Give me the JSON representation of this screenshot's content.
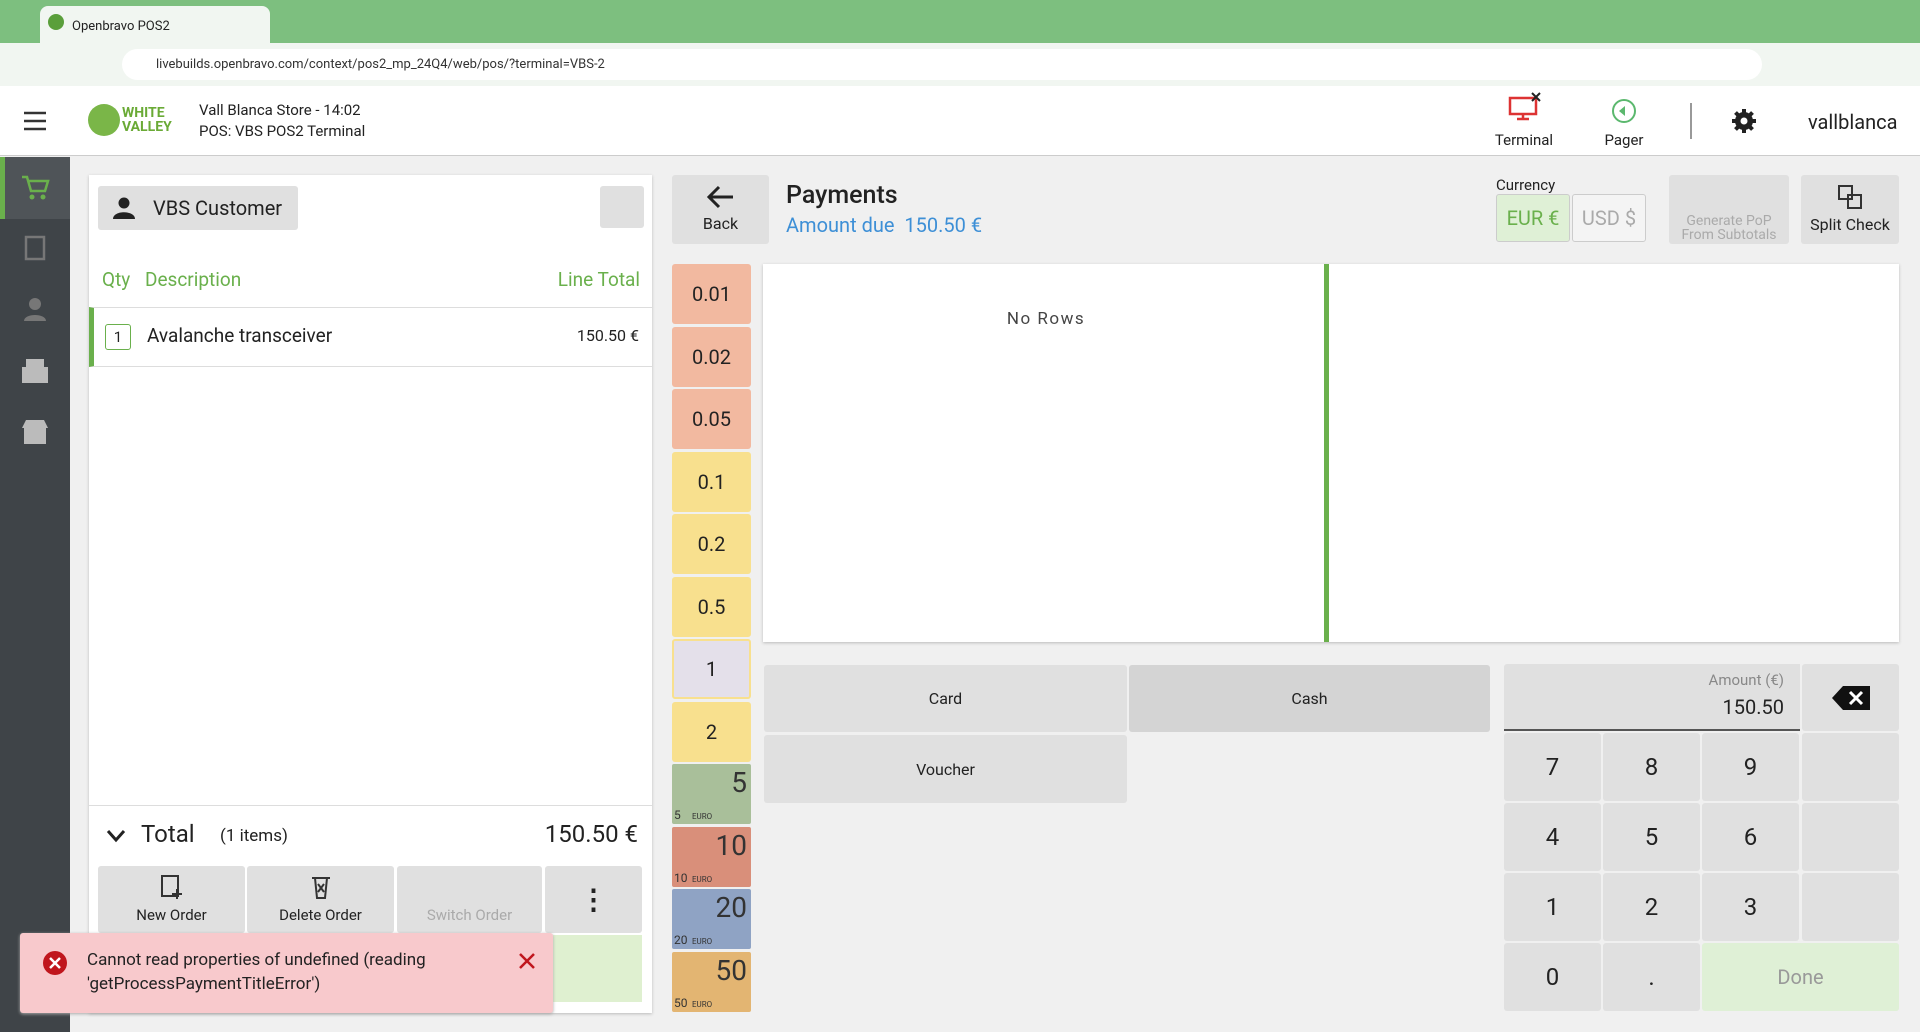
{
  "browser": {
    "tab_title": "Openbravo POS2",
    "url": "livebuilds.openbravo.com/context/pos2_mp_24Q4/web/pos/?terminal=VBS-2"
  },
  "header": {
    "logo": [
      "WHITE",
      "VALLEY"
    ],
    "store": "Vall Blanca Store - 14:02",
    "terminal": "POS: VBS POS2 Terminal",
    "terminal_button": "Terminal",
    "pager_button": "Pager",
    "user": "vallblanca"
  },
  "order": {
    "customer": "VBS Customer",
    "columns": [
      "Qty",
      "Description",
      "Line Total"
    ],
    "lines": [
      {
        "qty": "1",
        "description": "Avalanche transceiver",
        "total": "150.50 €"
      }
    ],
    "total_label": "Total",
    "items": "(1 items)",
    "total": "150.50 €",
    "actions": [
      "New Order",
      "Delete Order",
      "Switch Order"
    ]
  },
  "payments": {
    "back": "Back",
    "title": "Payments",
    "amount_due_label": "Amount due",
    "amount_due": "150.50 €",
    "currency_label": "Currency",
    "currencies": [
      "EUR €",
      "USD $"
    ],
    "generate_pop": [
      "Generate PoP",
      "From Subtotals"
    ],
    "split_check": "Split Check",
    "coins": [
      "0.01",
      "0.02",
      "0.05",
      "0.1",
      "0.2",
      "0.5",
      "1",
      "2"
    ],
    "bills": [
      "5",
      "10",
      "20",
      "50"
    ],
    "bill_unit": "EURO",
    "empty": "No Rows",
    "methods": [
      "Card",
      "Cash",
      "Voucher"
    ],
    "amount_label": "Amount (€)",
    "amount": "150.50",
    "keys": [
      "7",
      "8",
      "9",
      "4",
      "5",
      "6",
      "1",
      "2",
      "3",
      "0",
      "."
    ],
    "done": "Done"
  },
  "error": {
    "message": "Cannot read properties of undefined (reading 'getProcessPaymentTitleError')"
  }
}
